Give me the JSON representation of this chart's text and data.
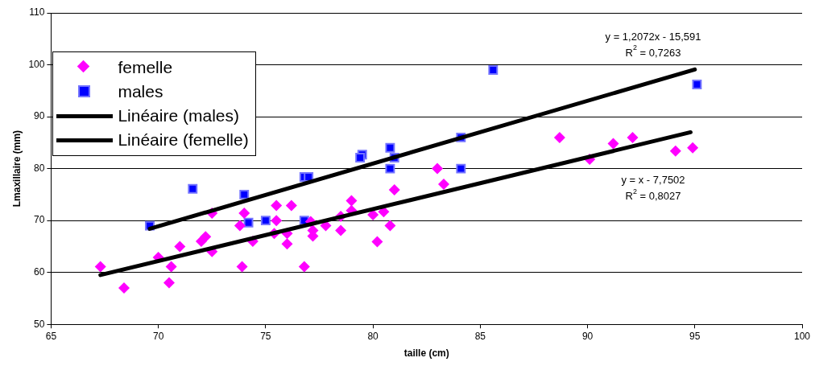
{
  "chart_data": {
    "type": "scatter",
    "xlabel": "taille (cm)",
    "ylabel": "Lmaxillaire (mm)",
    "xlim": [
      65,
      100
    ],
    "xticks": [
      65,
      70,
      75,
      80,
      85,
      90,
      95,
      100
    ],
    "ylim": [
      50,
      110
    ],
    "yticks": [
      50,
      60,
      70,
      80,
      90,
      100,
      110
    ],
    "grid": "y",
    "legend": "top left",
    "series": [
      {
        "name": "femelle",
        "color": "#ff00ff",
        "marker": "diamond",
        "x": [
          67.3,
          68.4,
          70.0,
          70.5,
          70.6,
          71.0,
          72.0,
          72.2,
          72.5,
          72.5,
          73.8,
          74.0,
          73.9,
          74.4,
          75.5,
          75.5,
          75.4,
          76.0,
          76.0,
          76.2,
          76.8,
          77.1,
          77.2,
          77.2,
          77.8,
          78.5,
          78.5,
          79.0,
          79.0,
          80.0,
          80.2,
          80.5,
          80.8,
          81.0,
          83.0,
          83.3,
          88.7,
          90.1,
          91.2,
          92.1,
          94.1,
          94.9
        ],
        "values": [
          61.1,
          57.0,
          62.9,
          58.0,
          61.1,
          65.0,
          66.0,
          66.9,
          71.4,
          64.0,
          69.0,
          71.4,
          61.1,
          66.0,
          72.9,
          70.0,
          67.5,
          67.5,
          65.5,
          72.9,
          61.1,
          69.8,
          68.1,
          67.0,
          69.0,
          70.8,
          68.1,
          73.8,
          71.9,
          71.1,
          65.9,
          71.7,
          69.0,
          75.9,
          80.0,
          77.0,
          86.0,
          81.8,
          84.8,
          86.0,
          83.4,
          84.0
        ]
      },
      {
        "name": "males",
        "color": "#0000ff",
        "marker": "square",
        "x": [
          69.6,
          71.6,
          74.0,
          74.2,
          75.0,
          76.8,
          76.8,
          77.0,
          79.5,
          79.4,
          80.8,
          80.8,
          81.0,
          84.1,
          84.1,
          85.6,
          95.1
        ],
        "values": [
          69.0,
          76.1,
          75.0,
          69.6,
          70.0,
          70.0,
          78.4,
          78.4,
          82.7,
          82.1,
          84.0,
          80.0,
          82.1,
          86.0,
          80.0,
          99.0,
          96.2
        ]
      },
      {
        "name": "Linéaire (males)",
        "type": "line",
        "color": "#000000",
        "marker": "none",
        "x": [
          69.6,
          95.0
        ],
        "values": [
          68.4,
          99.1
        ]
      },
      {
        "name": "Linéaire (femelle)",
        "type": "line",
        "color": "#000000",
        "marker": "none",
        "x": [
          67.3,
          94.8
        ],
        "values": [
          59.5,
          87.0
        ]
      }
    ],
    "annotations": [
      "y = 1,2072x - 15,591",
      "R$^{2}$ = 0,7263",
      "y = x - 7,7502",
      "R$^{2}$ = 0,8027"
    ]
  }
}
